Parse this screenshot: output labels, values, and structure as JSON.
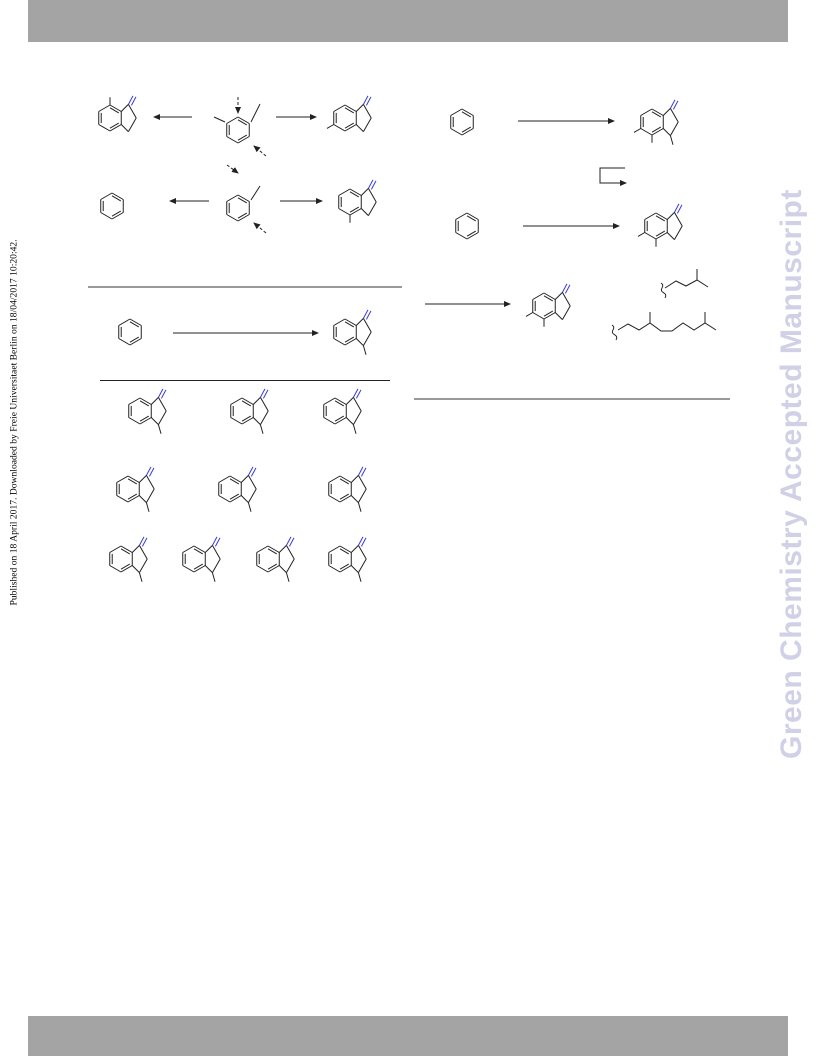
{
  "header": {
    "band_color": "#a4a4a4"
  },
  "footer": {
    "band_color": "#a4a4a4"
  },
  "side_note": "Published on 18 April 2017. Downloaded by Freie Universitaet Berlin on 18/04/2017 10:20:42.",
  "watermark": "Green Chemistry Accepted Manuscript",
  "colors": {
    "bond": "#222222",
    "carbonyl": "#3a3ad6",
    "rule": "#999999",
    "watermark": "#d0d0e6"
  }
}
